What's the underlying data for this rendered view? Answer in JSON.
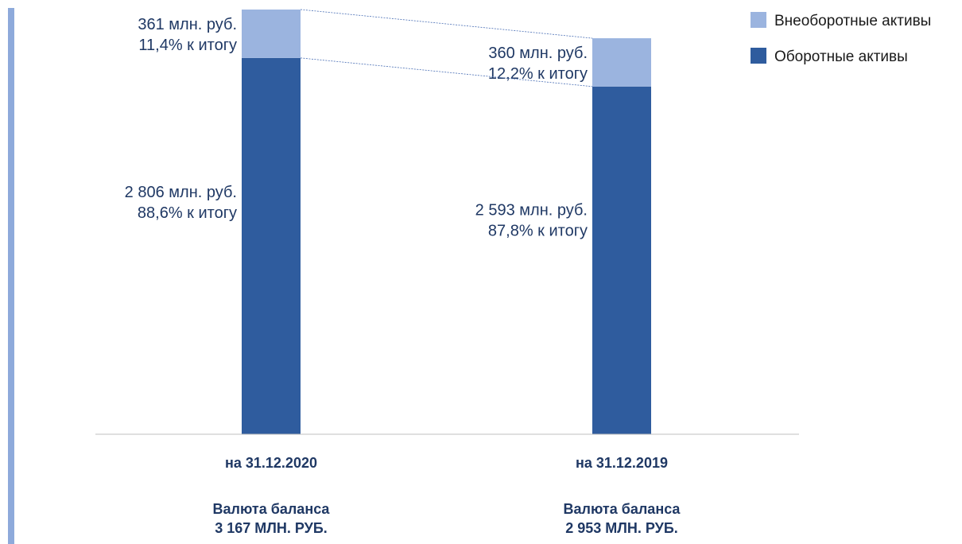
{
  "chart_data": {
    "type": "bar",
    "stacked": true,
    "categories": [
      "на 31.12.2020",
      "на 31.12.2019"
    ],
    "series": [
      {
        "name": "Оборотные активы",
        "color": "#2f5c9e",
        "values": [
          2806,
          2593
        ],
        "label_lines": [
          [
            "2 806 млн. руб.",
            "88,6% к итогу"
          ],
          [
            "2 593 млн. руб.",
            "87,8% к итогу"
          ]
        ]
      },
      {
        "name": "Внеоборотные активы",
        "color": "#9bb4df",
        "values": [
          361,
          360
        ],
        "label_lines": [
          [
            "361 млн. руб.",
            "11,4% к итогу"
          ],
          [
            "360 млн. руб.",
            "12,2% к итогу"
          ]
        ]
      }
    ],
    "totals": [
      [
        "Валюта баланса",
        "3 167 МЛН. РУБ."
      ],
      [
        "Валюта баланса",
        "2 953 МЛН. РУБ."
      ]
    ],
    "legend": [
      "Внеоборотные активы",
      "Оборотные активы"
    ],
    "legend_position": "top-right",
    "ylim": [
      0,
      3167
    ],
    "grid": false,
    "accent_color": "#8eaadb",
    "connector_color": "#4a6fb5"
  }
}
